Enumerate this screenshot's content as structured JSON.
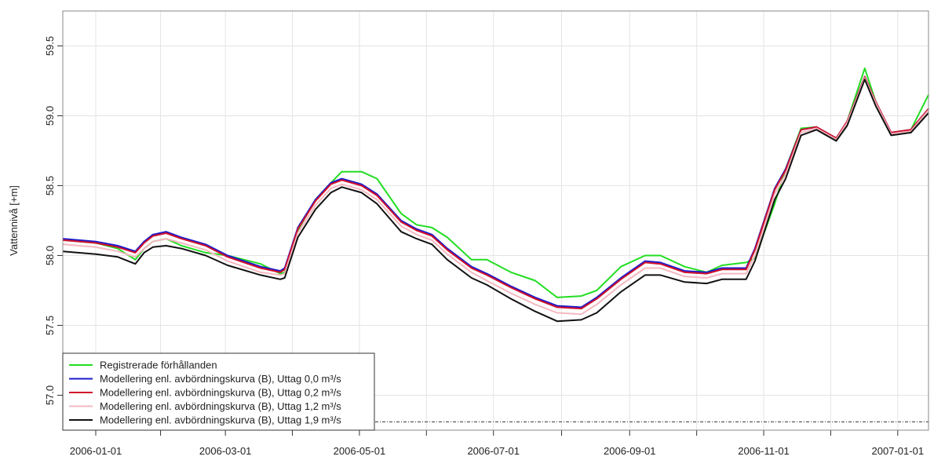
{
  "chart_data": {
    "type": "line",
    "y_label": "Vattennivå [+m]",
    "x": [
      "2005-12-17",
      "2006-01-01",
      "2006-01-11",
      "2006-01-19",
      "2006-01-23",
      "2006-01-27",
      "2006-02-02",
      "2006-02-09",
      "2006-02-20",
      "2006-03-02",
      "2006-03-17",
      "2006-03-26",
      "2006-03-28",
      "2006-04-03",
      "2006-04-11",
      "2006-04-18",
      "2006-04-23",
      "2006-05-02",
      "2006-05-09",
      "2006-05-20",
      "2006-05-27",
      "2006-06-03",
      "2006-06-10",
      "2006-06-21",
      "2006-06-28",
      "2006-07-09",
      "2006-07-20",
      "2006-07-30",
      "2006-08-10",
      "2006-08-17",
      "2006-08-28",
      "2006-09-08",
      "2006-09-15",
      "2006-09-26",
      "2006-10-06",
      "2006-10-13",
      "2006-10-24",
      "2006-10-28",
      "2006-11-06",
      "2006-11-11",
      "2006-11-18",
      "2006-11-25",
      "2006-12-04",
      "2006-12-09",
      "2006-12-17",
      "2006-12-22",
      "2006-12-29",
      "2007-01-07",
      "2007-01-15"
    ],
    "series": [
      {
        "name": "Registrerade förhållanden",
        "color": "#22dd22",
        "values": [
          58.11,
          58.09,
          58.05,
          57.97,
          58.05,
          58.1,
          58.12,
          58.07,
          58.02,
          58.0,
          57.94,
          57.87,
          57.88,
          58.18,
          58.4,
          58.52,
          58.6,
          58.6,
          58.55,
          58.3,
          58.22,
          58.2,
          58.13,
          57.97,
          57.97,
          57.88,
          57.82,
          57.7,
          57.71,
          57.75,
          57.92,
          58.0,
          58.0,
          57.92,
          57.88,
          57.93,
          57.95,
          57.98,
          58.37,
          58.62,
          58.91,
          58.92,
          58.83,
          58.96,
          59.34,
          59.1,
          58.87,
          58.9,
          59.15
        ]
      },
      {
        "name": "Modellering enl. avbördningskurva (B), Uttag 0,0 m³/s",
        "color": "#1a1acc",
        "values": [
          58.12,
          58.1,
          58.07,
          58.03,
          58.1,
          58.15,
          58.17,
          58.13,
          58.08,
          58.0,
          57.92,
          57.89,
          57.91,
          58.2,
          58.4,
          58.52,
          58.55,
          58.51,
          58.44,
          58.25,
          58.19,
          58.15,
          58.05,
          57.92,
          57.87,
          57.78,
          57.7,
          57.64,
          57.63,
          57.7,
          57.84,
          57.96,
          57.95,
          57.89,
          57.88,
          57.91,
          57.91,
          58.05,
          58.48,
          58.62,
          58.9,
          58.92,
          58.84,
          58.96,
          59.28,
          59.1,
          58.88,
          58.9,
          59.05
        ]
      },
      {
        "name": "Modellering enl. avbördningskurva (B), Uttag 0,2 m³/s",
        "color": "#d0102a",
        "values": [
          58.11,
          58.09,
          58.06,
          58.02,
          58.09,
          58.14,
          58.16,
          58.12,
          58.07,
          57.99,
          57.91,
          57.88,
          57.9,
          58.19,
          58.39,
          58.51,
          58.54,
          58.5,
          58.43,
          58.24,
          58.18,
          58.14,
          58.04,
          57.91,
          57.86,
          57.77,
          57.69,
          57.63,
          57.62,
          57.69,
          57.83,
          57.95,
          57.94,
          57.88,
          57.87,
          57.9,
          57.9,
          58.04,
          58.47,
          58.61,
          58.9,
          58.92,
          58.84,
          58.96,
          59.28,
          59.1,
          58.88,
          58.9,
          59.05
        ]
      },
      {
        "name": "Modellering enl. avbördningskurva (B), Uttag 1,2 m³/s",
        "color": "#f4b8c0",
        "values": [
          58.08,
          58.06,
          58.03,
          57.99,
          58.05,
          58.1,
          58.12,
          58.09,
          58.04,
          57.96,
          57.88,
          57.86,
          57.87,
          58.16,
          58.36,
          58.48,
          58.51,
          58.47,
          58.4,
          58.21,
          58.15,
          58.11,
          58.01,
          57.88,
          57.82,
          57.73,
          57.65,
          57.59,
          57.58,
          57.65,
          57.79,
          57.91,
          57.91,
          57.85,
          57.84,
          57.87,
          57.87,
          58.0,
          58.44,
          58.58,
          58.88,
          58.91,
          58.83,
          58.95,
          59.27,
          59.09,
          58.87,
          58.89,
          59.04
        ]
      },
      {
        "name": "Modellering enl. avbördningskurva (B), Uttag 1,9 m³/s",
        "color": "#111111",
        "values": [
          58.03,
          58.01,
          57.99,
          57.94,
          58.02,
          58.06,
          58.07,
          58.05,
          58.0,
          57.93,
          57.86,
          57.83,
          57.84,
          58.13,
          58.33,
          58.45,
          58.49,
          58.45,
          58.37,
          58.17,
          58.12,
          58.08,
          57.97,
          57.84,
          57.79,
          57.69,
          57.6,
          57.53,
          57.54,
          57.59,
          57.74,
          57.86,
          57.86,
          57.81,
          57.8,
          57.83,
          57.83,
          57.96,
          58.4,
          58.55,
          58.86,
          58.9,
          58.82,
          58.93,
          59.26,
          59.07,
          58.86,
          58.88,
          59.02
        ]
      }
    ],
    "xlim": [
      "2005-12-17",
      "2007-01-15"
    ],
    "xticks": [
      "2006-01-01",
      "2006-03-01",
      "2006-05-01",
      "2006-07-01",
      "2006-09-01",
      "2006-11-01",
      "2007-01-01"
    ],
    "ylim": [
      56.75,
      59.75
    ],
    "yticks": [
      {
        "value": 57,
        "label": "57.0"
      },
      {
        "value": 57.5,
        "label": "57.5"
      },
      {
        "value": 58,
        "label": "58.0"
      },
      {
        "value": 58.5,
        "label": "58.5"
      },
      {
        "value": 59,
        "label": "59.0"
      },
      {
        "value": 59.5,
        "label": "59.5"
      }
    ],
    "hline": 56.81,
    "grid": true,
    "legend": "bottom-left"
  }
}
